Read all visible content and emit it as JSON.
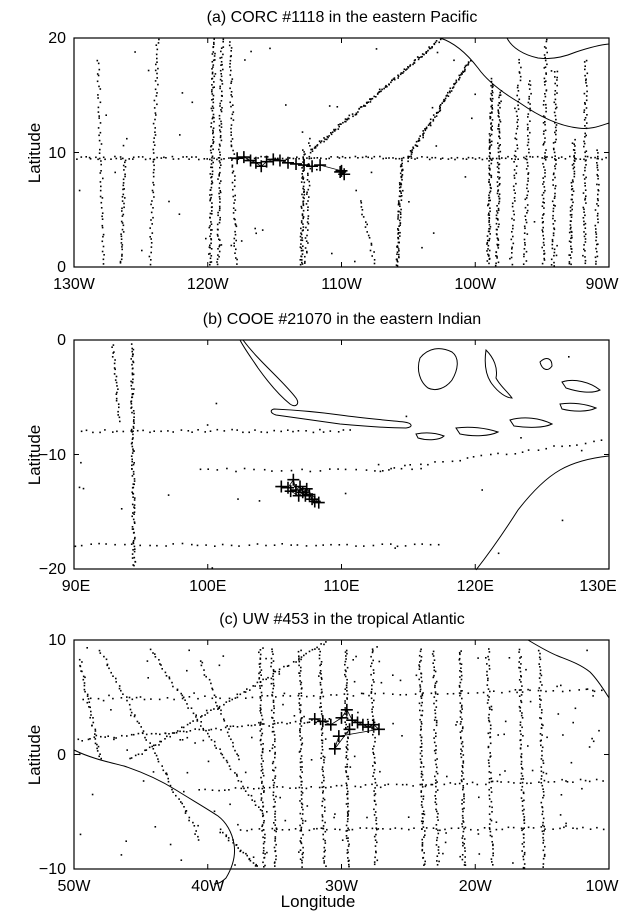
{
  "chart_data": [
    {
      "type": "scatter",
      "title": "(a) CORC #1118 in the eastern Pacific",
      "ylabel": "Latitude",
      "xlabel": "",
      "xlim": [
        -130,
        -90
      ],
      "ylim": [
        0,
        20
      ],
      "xticks": [
        -130,
        -120,
        -110,
        -100,
        -90
      ],
      "xtick_labels": [
        "130W",
        "120W",
        "110W",
        "100W",
        "90W"
      ],
      "yticks": [
        0,
        10,
        20
      ],
      "ytick_labels": [
        "0",
        "10",
        "20"
      ],
      "marker_color": "#000000",
      "series": [
        {
          "marker": "plus",
          "points": [
            [
              -117.8,
              9.5
            ],
            [
              -117.3,
              9.6
            ],
            [
              -116.8,
              9.3
            ],
            [
              -116.4,
              9.1
            ],
            [
              -116.0,
              8.8
            ],
            [
              -115.6,
              9.2
            ],
            [
              -115.1,
              9.4
            ],
            [
              -114.6,
              9.3
            ],
            [
              -114.0,
              9.1
            ],
            [
              -113.4,
              9.0
            ],
            [
              -112.8,
              8.9
            ],
            [
              -112.2,
              8.8
            ],
            [
              -111.6,
              8.9
            ],
            [
              -110.0,
              8.4
            ],
            [
              -109.8,
              8.1
            ],
            [
              -110.1,
              8.3
            ]
          ]
        }
      ]
    },
    {
      "type": "scatter",
      "title": "(b) COOE #21070 in the eastern Indian",
      "ylabel": "Latitude",
      "xlabel": "",
      "xlim": [
        90,
        130
      ],
      "ylim": [
        -20,
        0
      ],
      "xticks": [
        90,
        100,
        110,
        120,
        130
      ],
      "xtick_labels": [
        "90E",
        "100E",
        "110E",
        "120E",
        "130E"
      ],
      "yticks": [
        -20,
        -10,
        0
      ],
      "ytick_labels": [
        "−20",
        "−10",
        "0"
      ],
      "marker_color": "#000000",
      "series": [
        {
          "marker": "plus",
          "points": [
            [
              105.5,
              -12.8
            ],
            [
              106.0,
              -12.9
            ],
            [
              106.4,
              -12.2
            ],
            [
              106.6,
              -13.1
            ],
            [
              106.9,
              -12.8
            ],
            [
              107.1,
              -13.3
            ],
            [
              107.3,
              -13.6
            ],
            [
              107.6,
              -13.5
            ],
            [
              107.8,
              -13.9
            ],
            [
              108.0,
              -14.1
            ],
            [
              108.3,
              -14.2
            ],
            [
              107.4,
              -13.0
            ],
            [
              106.8,
              -13.6
            ],
            [
              106.2,
              -13.2
            ]
          ]
        }
      ]
    },
    {
      "type": "scatter",
      "title": "(c) UW #453 in the tropical Atlantic",
      "ylabel": "Latitude",
      "xlabel": "Longitude",
      "xlim": [
        -50,
        -10
      ],
      "ylim": [
        -10,
        10
      ],
      "xticks": [
        -50,
        -40,
        -30,
        -20,
        -10
      ],
      "xtick_labels": [
        "50W",
        "40W",
        "30W",
        "20W",
        "10W"
      ],
      "yticks": [
        -10,
        0,
        10
      ],
      "ytick_labels": [
        "−10",
        "0",
        "10"
      ],
      "marker_color": "#000000",
      "series": [
        {
          "marker": "plus",
          "points": [
            [
              -32.0,
              3.1
            ],
            [
              -31.4,
              2.9
            ],
            [
              -30.8,
              2.6
            ],
            [
              -30.0,
              3.2
            ],
            [
              -29.6,
              3.9
            ],
            [
              -29.2,
              3.0
            ],
            [
              -28.8,
              2.8
            ],
            [
              -28.4,
              2.6
            ],
            [
              -28.0,
              2.4
            ],
            [
              -27.6,
              2.6
            ],
            [
              -27.2,
              2.2
            ],
            [
              -30.2,
              1.6
            ],
            [
              -30.5,
              0.5
            ],
            [
              -29.4,
              2.2
            ]
          ]
        }
      ]
    }
  ]
}
